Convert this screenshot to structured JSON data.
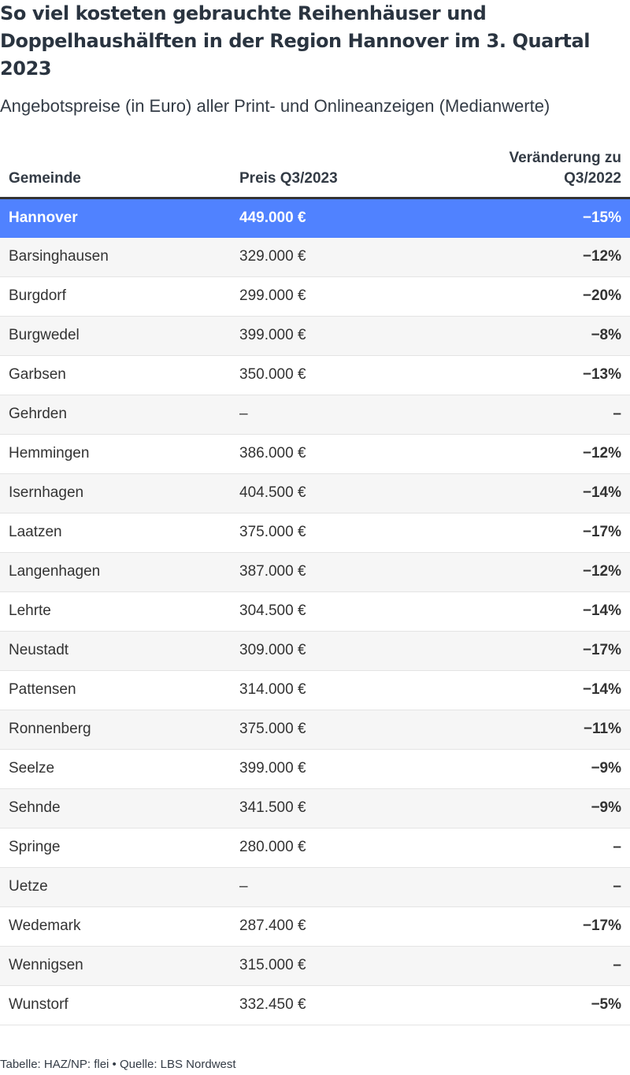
{
  "title": "So viel kosteten gebrauchte Reihenhäuser und Doppelhaushälften in der Region Hannover im 3. Quartal 2023",
  "subtitle": "Angebotspreise (in Euro) aller Print- und Onlineanzeigen (Medianwerte)",
  "footer": "Tabelle: HAZ/NP: flei • Quelle: LBS Nordwest",
  "colors": {
    "highlight": "#5082ff",
    "stripe": "#f6f6f6"
  },
  "chart_data": {
    "type": "table",
    "columns": [
      "Gemeinde",
      "Preis Q3/2023",
      "Veränderung zu Q3/2022"
    ],
    "highlighted_row": "Hannover",
    "rows": [
      {
        "gemeinde": "Hannover",
        "preis": "449.000 €",
        "veraenderung": "−15%"
      },
      {
        "gemeinde": "Barsinghausen",
        "preis": "329.000 €",
        "veraenderung": "−12%"
      },
      {
        "gemeinde": "Burgdorf",
        "preis": "299.000 €",
        "veraenderung": "−20%"
      },
      {
        "gemeinde": "Burgwedel",
        "preis": "399.000 €",
        "veraenderung": "−8%"
      },
      {
        "gemeinde": "Garbsen",
        "preis": "350.000 €",
        "veraenderung": "−13%"
      },
      {
        "gemeinde": "Gehrden",
        "preis": "–",
        "veraenderung": "–"
      },
      {
        "gemeinde": "Hemmingen",
        "preis": "386.000 €",
        "veraenderung": "−12%"
      },
      {
        "gemeinde": "Isernhagen",
        "preis": "404.500 €",
        "veraenderung": "−14%"
      },
      {
        "gemeinde": "Laatzen",
        "preis": "375.000 €",
        "veraenderung": "−17%"
      },
      {
        "gemeinde": "Langenhagen",
        "preis": "387.000 €",
        "veraenderung": "−12%"
      },
      {
        "gemeinde": "Lehrte",
        "preis": "304.500 €",
        "veraenderung": "−14%"
      },
      {
        "gemeinde": "Neustadt",
        "preis": "309.000 €",
        "veraenderung": "−17%"
      },
      {
        "gemeinde": "Pattensen",
        "preis": "314.000 €",
        "veraenderung": "−14%"
      },
      {
        "gemeinde": "Ronnenberg",
        "preis": "375.000 €",
        "veraenderung": "−11%"
      },
      {
        "gemeinde": "Seelze",
        "preis": "399.000 €",
        "veraenderung": "−9%"
      },
      {
        "gemeinde": "Sehnde",
        "preis": "341.500 €",
        "veraenderung": "−9%"
      },
      {
        "gemeinde": "Springe",
        "preis": "280.000 €",
        "veraenderung": "–"
      },
      {
        "gemeinde": "Uetze",
        "preis": "–",
        "veraenderung": "–"
      },
      {
        "gemeinde": "Wedemark",
        "preis": "287.400 €",
        "veraenderung": "−17%"
      },
      {
        "gemeinde": "Wennigsen",
        "preis": "315.000 €",
        "veraenderung": "–"
      },
      {
        "gemeinde": "Wunstorf",
        "preis": "332.450 €",
        "veraenderung": "−5%"
      }
    ]
  }
}
